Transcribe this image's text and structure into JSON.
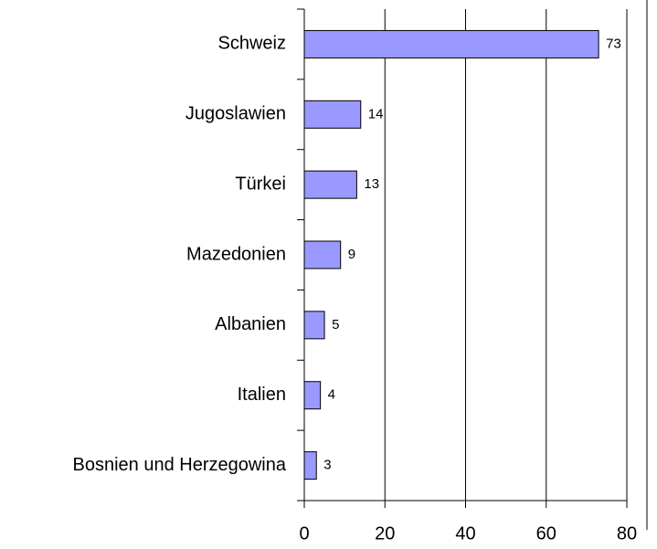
{
  "chart_data": {
    "type": "bar",
    "orientation": "horizontal",
    "categories": [
      "Schweiz",
      "Jugoslawien",
      "Türkei",
      "Mazedonien",
      "Albanien",
      "Italien",
      "Bosnien und Herzegowina"
    ],
    "values": [
      73,
      14,
      13,
      9,
      5,
      4,
      3
    ],
    "color": "#9999ff",
    "xlim": [
      0,
      80
    ],
    "xticks": [
      0,
      20,
      40,
      60,
      80
    ],
    "grid": true
  }
}
